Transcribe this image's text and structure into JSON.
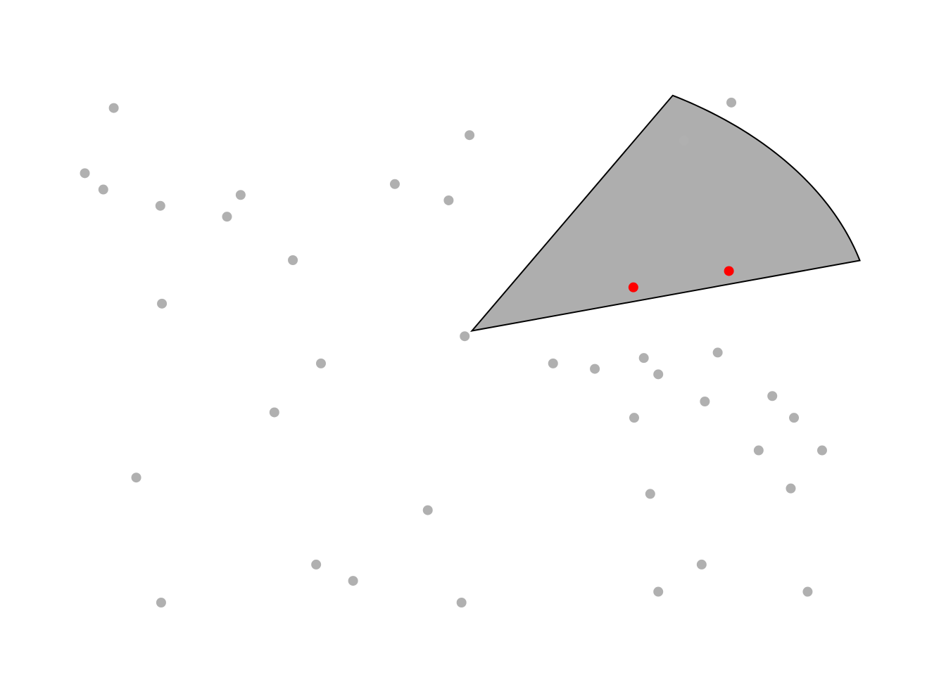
{
  "chart_data": {
    "type": "scatter",
    "title": "",
    "xlabel": "",
    "ylabel": "",
    "xlim": [
      0,
      1
    ],
    "ylim": [
      0,
      1
    ],
    "grid": false,
    "axes_visible": false,
    "colors": {
      "point": "#b0b0b0",
      "highlight": "#ff0000",
      "sector_fill": "#aeaeae",
      "sector_stroke": "#000000"
    },
    "sector": {
      "center": [
        0.5,
        0.5
      ],
      "radius": 0.5,
      "theta_start_deg": 15,
      "theta_end_deg": 60
    },
    "points": [
      {
        "x": 0.054,
        "y": 0.91
      },
      {
        "x": 0.018,
        "y": 0.79
      },
      {
        "x": 0.041,
        "y": 0.76
      },
      {
        "x": 0.112,
        "y": 0.73
      },
      {
        "x": 0.212,
        "y": 0.75
      },
      {
        "x": 0.195,
        "y": 0.71
      },
      {
        "x": 0.277,
        "y": 0.63
      },
      {
        "x": 0.114,
        "y": 0.55
      },
      {
        "x": 0.312,
        "y": 0.44
      },
      {
        "x": 0.254,
        "y": 0.35
      },
      {
        "x": 0.082,
        "y": 0.23
      },
      {
        "x": 0.306,
        "y": 0.07
      },
      {
        "x": 0.352,
        "y": 0.04
      },
      {
        "x": 0.113,
        "y": 0.0
      },
      {
        "x": 0.404,
        "y": 0.77
      },
      {
        "x": 0.497,
        "y": 0.86
      },
      {
        "x": 0.471,
        "y": 0.74
      },
      {
        "x": 0.491,
        "y": 0.49
      },
      {
        "x": 0.445,
        "y": 0.17
      },
      {
        "x": 0.487,
        "y": 0.0
      },
      {
        "x": 0.601,
        "y": 0.44
      },
      {
        "x": 0.653,
        "y": 0.43
      },
      {
        "x": 0.714,
        "y": 0.45
      },
      {
        "x": 0.732,
        "y": 0.42
      },
      {
        "x": 0.702,
        "y": 0.34
      },
      {
        "x": 0.79,
        "y": 0.37
      },
      {
        "x": 0.806,
        "y": 0.46
      },
      {
        "x": 0.874,
        "y": 0.38
      },
      {
        "x": 0.901,
        "y": 0.34
      },
      {
        "x": 0.857,
        "y": 0.28
      },
      {
        "x": 0.936,
        "y": 0.28
      },
      {
        "x": 0.897,
        "y": 0.21
      },
      {
        "x": 0.722,
        "y": 0.2
      },
      {
        "x": 0.786,
        "y": 0.07
      },
      {
        "x": 0.732,
        "y": 0.02
      },
      {
        "x": 0.918,
        "y": 0.02
      },
      {
        "x": 0.764,
        "y": 0.85
      },
      {
        "x": 0.823,
        "y": 0.92
      }
    ],
    "highlighted_points": [
      {
        "x": 0.701,
        "y": 0.58
      },
      {
        "x": 0.82,
        "y": 0.61
      }
    ]
  }
}
